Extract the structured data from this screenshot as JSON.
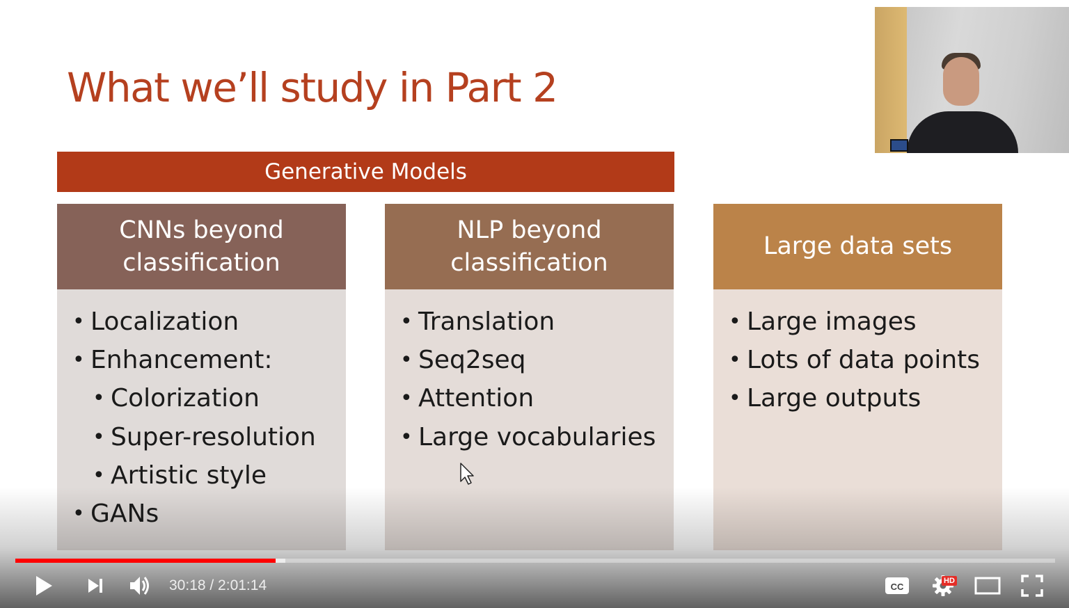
{
  "slide": {
    "title": "What we’ll study in Part 2",
    "banner": "Generative Models",
    "columns": [
      {
        "header": "CNNs beyond classification",
        "header_color": "#866258",
        "items": [
          {
            "text": "Localization",
            "level": 1
          },
          {
            "text": "Enhancement:",
            "level": 1
          },
          {
            "text": "Colorization",
            "level": 2
          },
          {
            "text": "Super-resolution",
            "level": 2
          },
          {
            "text": "Artistic style",
            "level": 2
          },
          {
            "text": "GANs",
            "level": 1
          }
        ]
      },
      {
        "header": "NLP beyond classification",
        "header_color": "#966d52",
        "items": [
          {
            "text": "Translation",
            "level": 1
          },
          {
            "text": "Seq2seq",
            "level": 1
          },
          {
            "text": "Attention",
            "level": 1
          },
          {
            "text": "Large vocabularies",
            "level": 1
          }
        ]
      },
      {
        "header": "Large data sets",
        "header_color": "#bb8349",
        "items": [
          {
            "text": "Large images",
            "level": 1
          },
          {
            "text": "Lots of data points",
            "level": 1
          },
          {
            "text": "Large outputs",
            "level": 1
          }
        ]
      }
    ],
    "colors": {
      "title": "#b5401f",
      "banner": "#b23a18"
    }
  },
  "player": {
    "time_display": "30:18 / 2:01:14",
    "current_time": "30:18",
    "duration": "2:01:14",
    "progress_fraction": 0.25,
    "buffered_fraction": 0.26,
    "hd_badge": "HD",
    "cc_label": "CC",
    "icons": [
      "play-icon",
      "next-icon",
      "volume-icon",
      "cc-icon",
      "settings-icon",
      "theater-icon",
      "fullscreen-icon"
    ],
    "progress_color": "#ff0000"
  }
}
